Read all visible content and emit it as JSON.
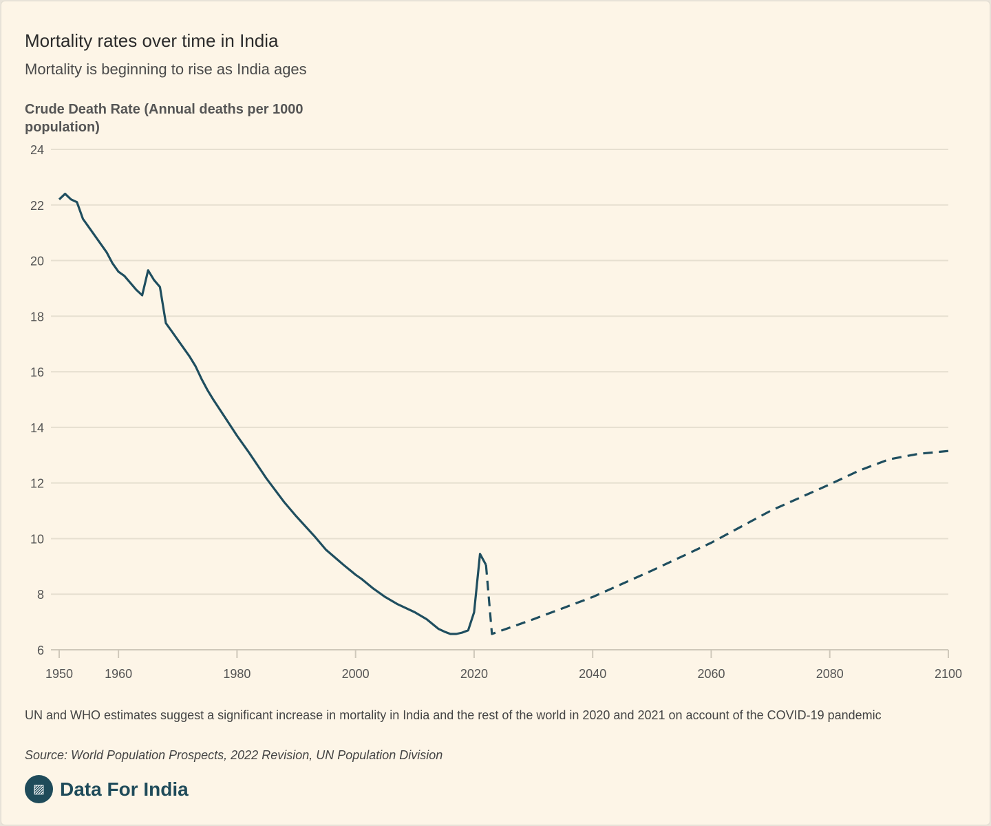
{
  "title": "Mortality rates over time in India",
  "subtitle": "Mortality is beginning to rise as India ages",
  "note": "UN and WHO estimates suggest a significant increase in mortality in India and the rest of the world in 2020 and 2021 on account of the COVID-19 pandemic",
  "source": "Source: World Population Prospects, 2022 Revision, UN Population Division",
  "brand": "Data For India",
  "colors": {
    "line": "#1f4e5f",
    "grid": "#e6dfd0",
    "background": "#fdf5e7"
  },
  "chart_data": {
    "type": "line",
    "ylabel": "Crude Death Rate (Annual deaths per 1000 population)",
    "xlim": [
      1950,
      2100
    ],
    "ylim": [
      6,
      24
    ],
    "xticks": [
      1950,
      1960,
      1980,
      2000,
      2020,
      2040,
      2060,
      2080,
      2100
    ],
    "yticks": [
      6,
      8,
      10,
      12,
      14,
      16,
      18,
      20,
      22,
      24
    ],
    "grid": true,
    "series": [
      {
        "style": "solid",
        "points": [
          [
            1950,
            22.2
          ],
          [
            1951,
            22.4
          ],
          [
            1952,
            22.2
          ],
          [
            1953,
            22.1
          ],
          [
            1954,
            21.5
          ],
          [
            1955,
            21.2
          ],
          [
            1956,
            20.9
          ],
          [
            1957,
            20.6
          ],
          [
            1958,
            20.3
          ],
          [
            1959,
            19.9
          ],
          [
            1960,
            19.6
          ],
          [
            1961,
            19.45
          ],
          [
            1962,
            19.2
          ],
          [
            1963,
            18.95
          ],
          [
            1964,
            18.75
          ],
          [
            1965,
            19.65
          ],
          [
            1966,
            19.3
          ],
          [
            1967,
            19.05
          ],
          [
            1968,
            17.75
          ],
          [
            1969,
            17.45
          ],
          [
            1970,
            17.15
          ],
          [
            1971,
            16.85
          ],
          [
            1972,
            16.55
          ],
          [
            1973,
            16.2
          ],
          [
            1974,
            15.75
          ],
          [
            1975,
            15.35
          ],
          [
            1976,
            15.0
          ],
          [
            1978,
            14.35
          ],
          [
            1980,
            13.7
          ],
          [
            1982,
            13.1
          ],
          [
            1985,
            12.15
          ],
          [
            1988,
            11.3
          ],
          [
            1990,
            10.8
          ],
          [
            1993,
            10.1
          ],
          [
            1995,
            9.6
          ],
          [
            1998,
            9.05
          ],
          [
            2000,
            8.7
          ],
          [
            2001,
            8.55
          ],
          [
            2003,
            8.2
          ],
          [
            2005,
            7.9
          ],
          [
            2007,
            7.65
          ],
          [
            2010,
            7.35
          ],
          [
            2012,
            7.1
          ],
          [
            2014,
            6.75
          ],
          [
            2015,
            6.65
          ],
          [
            2016,
            6.57
          ],
          [
            2017,
            6.57
          ],
          [
            2018,
            6.62
          ],
          [
            2019,
            6.7
          ],
          [
            2020,
            7.35
          ],
          [
            2021,
            9.45
          ],
          [
            2022,
            9.05
          ]
        ]
      },
      {
        "style": "dashed",
        "points": [
          [
            2022,
            9.05
          ],
          [
            2023,
            6.57
          ],
          [
            2030,
            7.1
          ],
          [
            2040,
            7.9
          ],
          [
            2050,
            8.85
          ],
          [
            2060,
            9.85
          ],
          [
            2070,
            11.0
          ],
          [
            2080,
            11.95
          ],
          [
            2085,
            12.45
          ],
          [
            2090,
            12.85
          ],
          [
            2095,
            13.05
          ],
          [
            2100,
            13.15
          ]
        ]
      }
    ]
  }
}
